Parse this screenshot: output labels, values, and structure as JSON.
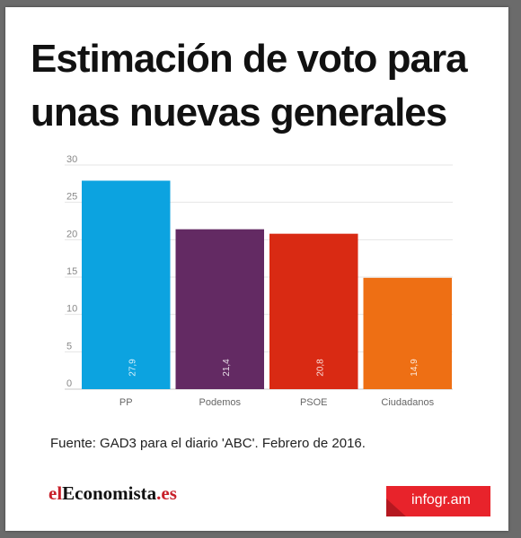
{
  "title": "Estimación de voto para unas nuevas generales",
  "source": "Fuente:  GAD3 para el diario 'ABC'.  Febrero de 2016.",
  "brand": {
    "prefix": "el",
    "main": "Economista",
    "suffix": ".es"
  },
  "badge": "infogr.am",
  "chart_data": {
    "type": "bar",
    "categories": [
      "PP",
      "Podemos",
      "PSOE",
      "Ciudadanos"
    ],
    "values": [
      27.9,
      21.4,
      20.8,
      14.9
    ],
    "value_labels": [
      "27,9",
      "21,4",
      "20,8",
      "14,9"
    ],
    "colors": [
      "#0ca3e0",
      "#632a63",
      "#d92a13",
      "#ee6f14"
    ],
    "yticks": [
      0,
      5,
      10,
      15,
      20,
      25,
      30
    ],
    "ylim": [
      0,
      30
    ],
    "grid": true
  }
}
